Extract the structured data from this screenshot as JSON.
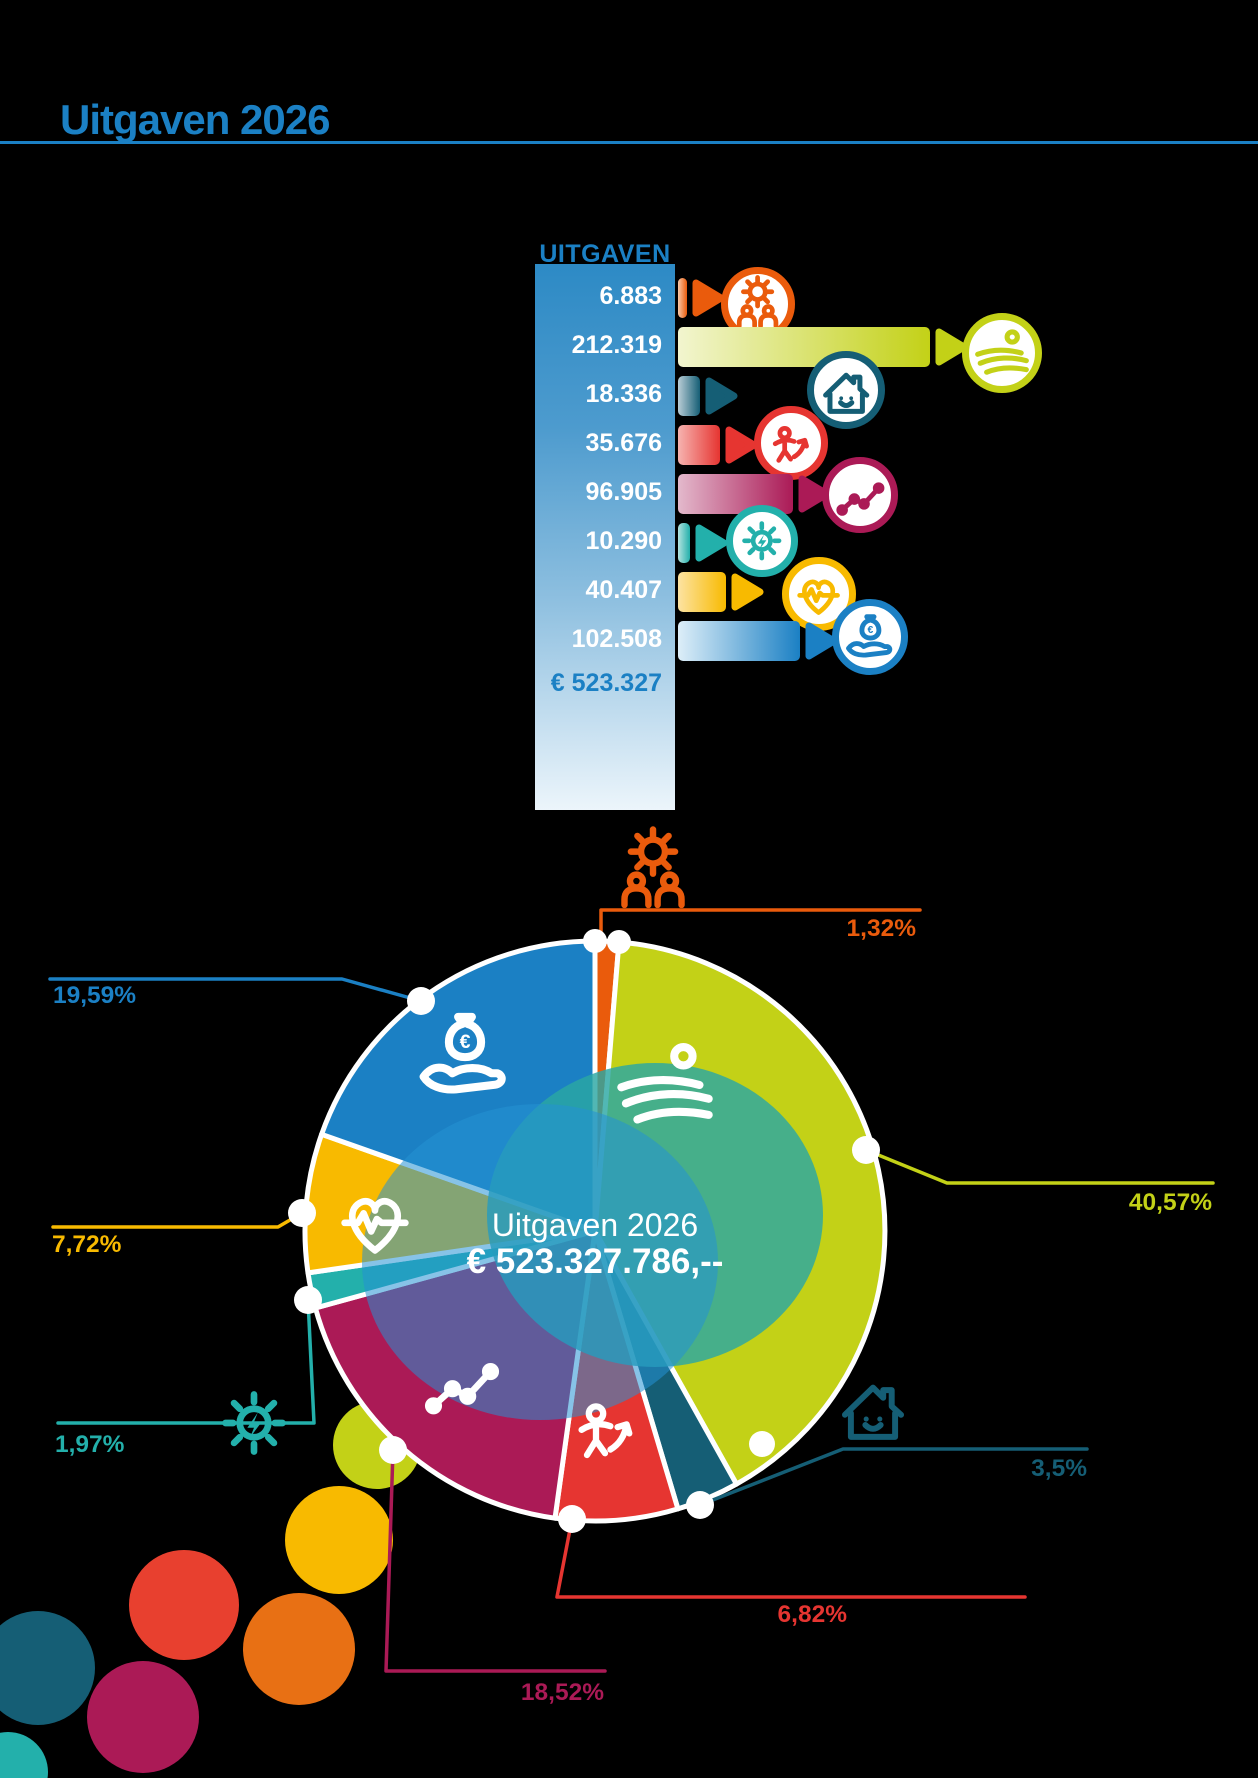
{
  "title": "Uitgaven 2026",
  "colors": {
    "accent_blue": "#1b80c4",
    "orange": "#ea5b0c",
    "lime": "#c3d117",
    "petrol": "#155e75",
    "red": "#e63531",
    "magenta": "#ab1a56",
    "teal": "#23b0ab",
    "yellow": "#f8ba00",
    "blue": "#1b80c4"
  },
  "bar_chart": {
    "header": "UITGAVEN",
    "total_label": "€ 523.327",
    "rows": [
      {
        "icon": "gear-people-icon",
        "value_label": "6.883",
        "value": 6883,
        "color": "#ea5b0c",
        "light": "#f9c9a8"
      },
      {
        "icon": "field-icon",
        "value_label": "212.319",
        "value": 212319,
        "color": "#c3d117",
        "light": "#f2f5cf"
      },
      {
        "icon": "house-icon",
        "value_label": "18.336",
        "value": 18336,
        "color": "#155e75",
        "light": "#b9cdd6"
      },
      {
        "icon": "person-icon",
        "value_label": "35.676",
        "value": 35676,
        "color": "#e63531",
        "light": "#f6b3b0"
      },
      {
        "icon": "chart-icon",
        "value_label": "96.905",
        "value": 96905,
        "color": "#ab1a56",
        "light": "#e3b9cc"
      },
      {
        "icon": "sun-icon",
        "value_label": "10.290",
        "value": 10290,
        "color": "#23b0ab",
        "light": "#b3e2df"
      },
      {
        "icon": "heart-icon",
        "value_label": "40.407",
        "value": 40407,
        "color": "#f8ba00",
        "light": "#fce3a2"
      },
      {
        "icon": "hand-euro-icon",
        "value_label": "102.508",
        "value": 102508,
        "color": "#1b80c4",
        "light": "#ddeef8"
      }
    ]
  },
  "pie": {
    "center_line1": "Uitgaven 2026",
    "center_line2": "€ 523.327.786,--",
    "slices": [
      {
        "label": "1,32%",
        "pct": 1.32,
        "color": "#ea5b0c",
        "icon": "gear-people-icon"
      },
      {
        "label": "40,57%",
        "pct": 40.57,
        "color": "#c3d117",
        "icon": "field-icon"
      },
      {
        "label": "3,5%",
        "pct": 3.5,
        "color": "#155e75",
        "icon": "house-icon"
      },
      {
        "label": "6,82%",
        "pct": 6.82,
        "color": "#e63531",
        "icon": "person-icon"
      },
      {
        "label": "18,52%",
        "pct": 18.52,
        "color": "#ab1a56",
        "icon": "chart-icon"
      },
      {
        "label": "1,97%",
        "pct": 1.97,
        "color": "#23b0ab",
        "icon": "sun-icon"
      },
      {
        "label": "7,72%",
        "pct": 7.72,
        "color": "#f8ba00",
        "icon": "heart-icon"
      },
      {
        "label": "19,59%",
        "pct": 19.59,
        "color": "#1b80c4",
        "icon": "hand-euro-icon"
      }
    ]
  },
  "chart_data": [
    {
      "type": "table",
      "title": "UITGAVEN",
      "categories": [
        "gear-people",
        "field",
        "house",
        "person",
        "chart",
        "sun",
        "heart",
        "hand-euro"
      ],
      "values": [
        6883,
        212319,
        18336,
        35676,
        96905,
        10290,
        40407,
        102508
      ],
      "total_label": "€ 523.327",
      "colors": [
        "#ea5b0c",
        "#c3d117",
        "#155e75",
        "#e63531",
        "#ab1a56",
        "#23b0ab",
        "#f8ba00",
        "#1b80c4"
      ]
    },
    {
      "type": "pie",
      "title": "Uitgaven 2026",
      "subtitle": "€ 523.327.786,--",
      "labels": [
        "1,32%",
        "40,57%",
        "3,5%",
        "6,82%",
        "18,52%",
        "1,97%",
        "7,72%",
        "19,59%"
      ],
      "values": [
        1.32,
        40.57,
        3.5,
        6.82,
        18.52,
        1.97,
        7.72,
        19.59
      ],
      "colors": [
        "#ea5b0c",
        "#c3d117",
        "#155e75",
        "#e63531",
        "#ab1a56",
        "#23b0ab",
        "#f8ba00",
        "#1b80c4"
      ],
      "start_angle_deg": 0,
      "legend_position": "callouts-around-pie"
    }
  ]
}
